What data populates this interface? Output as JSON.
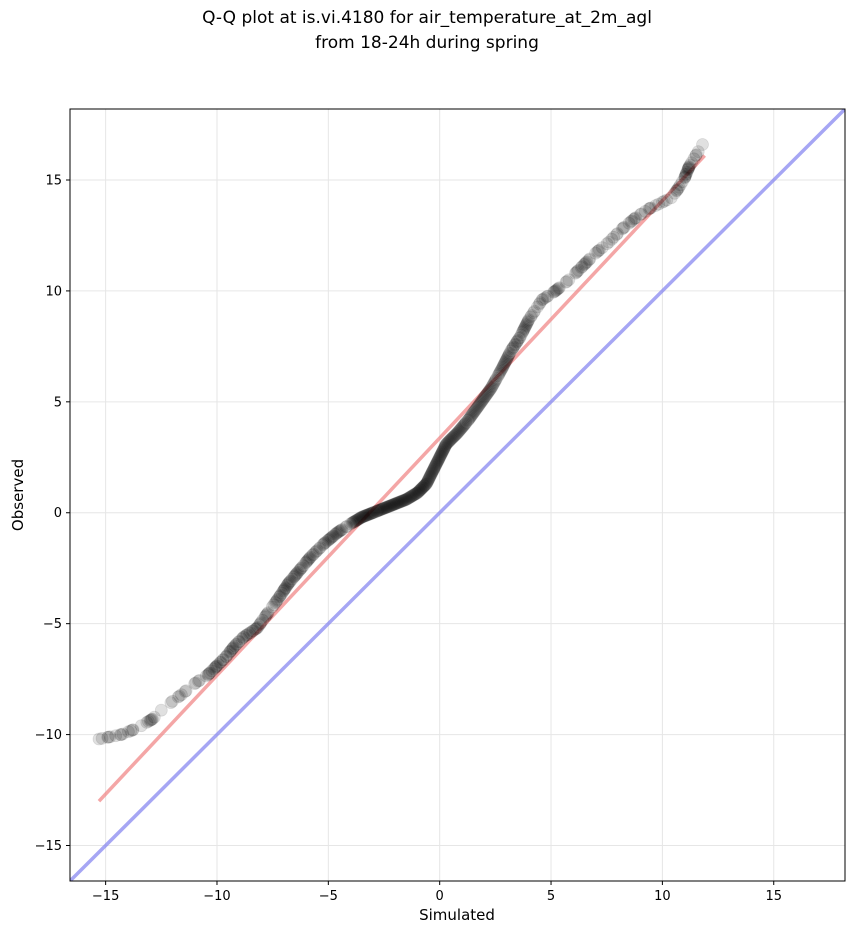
{
  "chart_data": {
    "type": "scatter",
    "title_line1": "Q-Q plot at is.vi.4180 for air_temperature_at_2m_agl",
    "title_line2": "from 18-24h during spring",
    "xlabel": "Simulated",
    "ylabel": "Observed",
    "xlim": [
      -16.6,
      18.2
    ],
    "ylim": [
      -16.6,
      18.2
    ],
    "xticks": [
      -15,
      -10,
      -5,
      0,
      5,
      10,
      15
    ],
    "yticks": [
      -15,
      -10,
      -5,
      0,
      5,
      10,
      15
    ],
    "xtick_labels": [
      "−15",
      "−10",
      "−5",
      "0",
      "5",
      "10",
      "15"
    ],
    "ytick_labels": [
      "−15",
      "−10",
      "−5",
      "0",
      "5",
      "10",
      "15"
    ],
    "grid": true,
    "colors": {
      "points": "#000000",
      "fit_line": "#f08080",
      "identity_line": "#8080f0",
      "grid": "#e6e6e6"
    },
    "identity_line": {
      "x": [
        -16.6,
        18.2
      ],
      "y": [
        -16.6,
        18.2
      ]
    },
    "fit_line": {
      "x": [
        -15.3,
        11.9
      ],
      "y": [
        -13.0,
        16.1
      ]
    },
    "quantile_curve": {
      "x": [
        -15.3,
        -14.8,
        -14.3,
        -13.8,
        -13.4,
        -12.9,
        -12.5,
        -12.0,
        -11.6,
        -11.0,
        -10.4,
        -10.0,
        -9.6,
        -9.2,
        -8.8,
        -8.2,
        -7.7,
        -7.2,
        -6.8,
        -6.3,
        -5.8,
        -5.2,
        -4.6,
        -4.0,
        -3.5,
        -3.0,
        -2.5,
        -2.0,
        -1.5,
        -1.0,
        -0.6,
        -0.3,
        0.0,
        0.3,
        0.8,
        1.3,
        1.8,
        2.3,
        2.8,
        3.2,
        3.6,
        4.0,
        4.6,
        5.2,
        5.8,
        6.4,
        7.0,
        7.6,
        8.2,
        8.8,
        9.4,
        10.0,
        10.4,
        10.7,
        11.0,
        11.2,
        11.5,
        11.8
      ],
      "y": [
        -10.2,
        -10.1,
        -10.0,
        -9.8,
        -9.6,
        -9.3,
        -8.9,
        -8.5,
        -8.2,
        -7.7,
        -7.3,
        -6.9,
        -6.5,
        -6.0,
        -5.6,
        -5.2,
        -4.5,
        -3.8,
        -3.2,
        -2.6,
        -2.0,
        -1.4,
        -0.9,
        -0.5,
        -0.2,
        0.0,
        0.2,
        0.4,
        0.6,
        0.9,
        1.3,
        1.9,
        2.5,
        3.1,
        3.6,
        4.2,
        4.9,
        5.6,
        6.5,
        7.3,
        7.9,
        8.7,
        9.6,
        10.0,
        10.5,
        11.1,
        11.7,
        12.2,
        12.8,
        13.3,
        13.7,
        14.0,
        14.2,
        14.6,
        15.1,
        15.6,
        16.1,
        16.6
      ]
    }
  }
}
